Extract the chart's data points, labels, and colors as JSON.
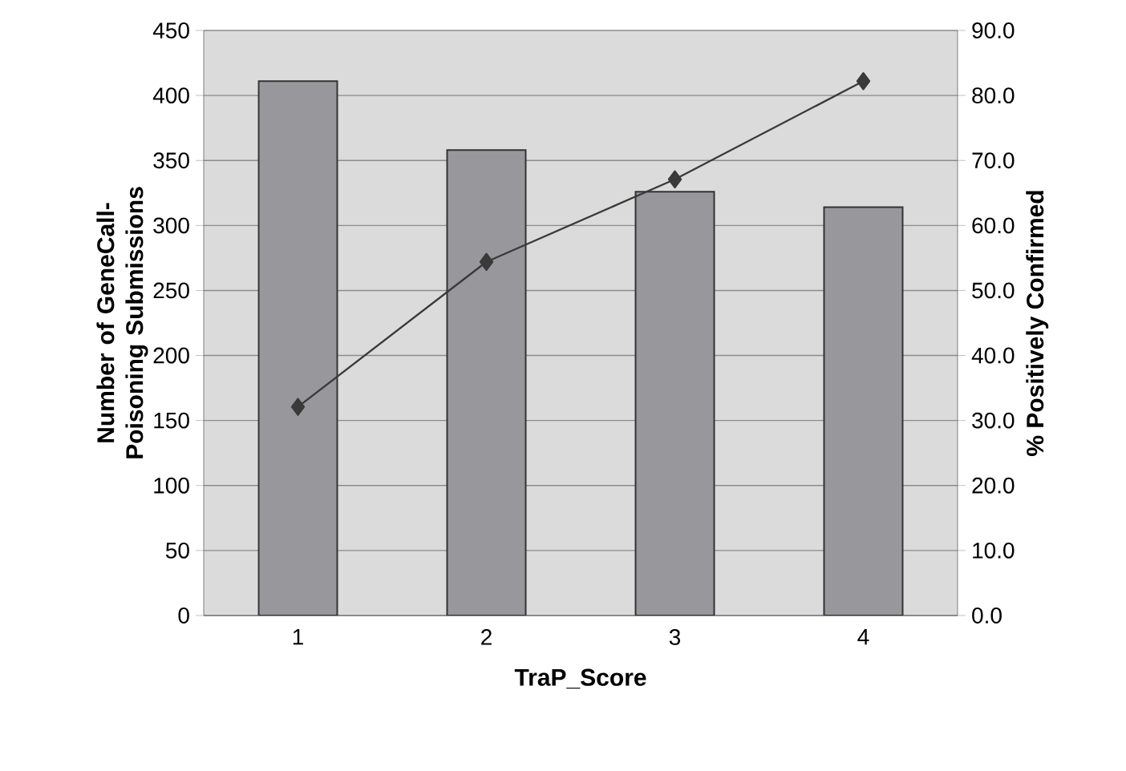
{
  "chart_data": {
    "type": "bar",
    "xlabel": "TraP_Score",
    "ylabel": "Number of GeneCall-Poisoning Submissions",
    "y2label": "% Positively Confirmed",
    "categories": [
      "1",
      "2",
      "3",
      "4"
    ],
    "series": [
      {
        "color": "#98989c",
        "values": [
          411,
          358,
          326,
          314
        ]
      },
      {
        "type": "line",
        "axis": "y2",
        "color": "#3a3a3a",
        "marker": "diamond",
        "values": [
          32.1,
          54.4,
          67.1,
          82.2
        ]
      }
    ],
    "ylim": [
      0,
      450
    ],
    "yticks": [
      0,
      50,
      100,
      150,
      200,
      250,
      300,
      350,
      400,
      450
    ],
    "y2lim": [
      0,
      90
    ],
    "y2ticks": [
      {
        "value": 0,
        "label": "0.0"
      },
      {
        "value": 10,
        "label": "10.0"
      },
      {
        "value": 20,
        "label": "20.0"
      },
      {
        "value": 30,
        "label": "30.0"
      },
      {
        "value": 40,
        "label": "40.0"
      },
      {
        "value": 50,
        "label": "50.0"
      },
      {
        "value": 60,
        "label": "60.0"
      },
      {
        "value": 70,
        "label": "70.0"
      },
      {
        "value": 80,
        "label": "80.0"
      },
      {
        "value": 90,
        "label": "90.0"
      }
    ],
    "grid": "y"
  }
}
